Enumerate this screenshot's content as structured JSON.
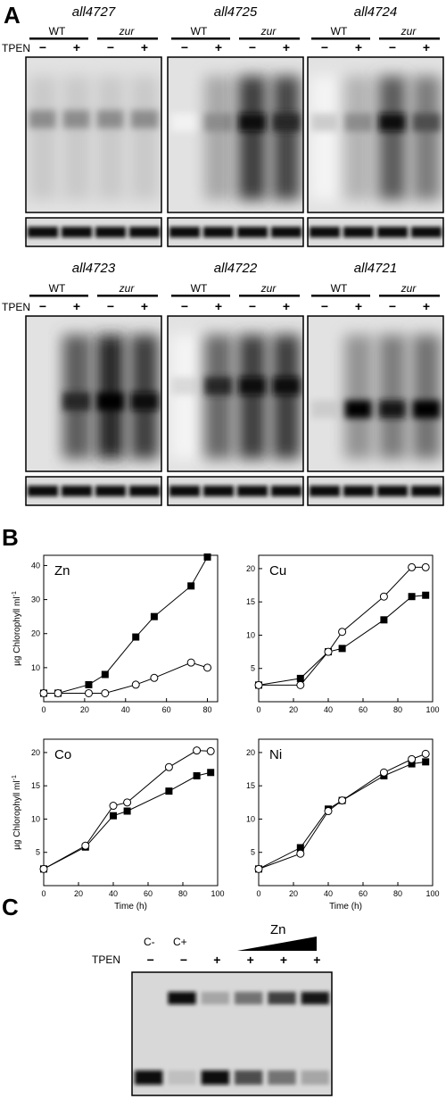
{
  "panel_a": {
    "letter": "A",
    "tpen_label": "TPEN",
    "wt_label": "WT",
    "zur_label": "zur",
    "minus": "−",
    "plus": "+",
    "blots": [
      {
        "gene": "all4727",
        "intensity": [
          0.45,
          0.45,
          0.45,
          0.45
        ],
        "smear": [
          0.25,
          0.25,
          0.25,
          0.25
        ],
        "band_y": 0.4
      },
      {
        "gene": "all4725",
        "intensity": [
          0.05,
          0.45,
          0.95,
          0.85
        ],
        "smear": [
          0.0,
          0.4,
          0.9,
          0.85
        ],
        "band_y": 0.42
      },
      {
        "gene": "all4724",
        "intensity": [
          0.2,
          0.45,
          0.95,
          0.7
        ],
        "smear": [
          0.05,
          0.35,
          0.75,
          0.6
        ],
        "band_y": 0.42
      },
      {
        "gene": "all4723",
        "intensity": [
          0.0,
          0.85,
          1.0,
          0.95
        ],
        "smear": [
          0.0,
          0.75,
          1.0,
          0.9
        ],
        "band_y": 0.55
      },
      {
        "gene": "all4722",
        "intensity": [
          0.15,
          0.85,
          0.95,
          0.95
        ],
        "smear": [
          0.05,
          0.7,
          0.9,
          0.9
        ],
        "band_y": 0.45
      },
      {
        "gene": "all4721",
        "intensity": [
          0.2,
          1.0,
          0.9,
          1.0
        ],
        "smear": [
          0.0,
          0.5,
          0.6,
          0.65
        ],
        "band_y": 0.6
      }
    ]
  },
  "panel_b": {
    "letter": "B",
    "ylabel": "µg Chlorophyll ml",
    "ylabel_sup": "-1",
    "xlabel": "Time (h)",
    "chart_data": [
      {
        "type": "line",
        "title": "Zn",
        "xlim": [
          0,
          85
        ],
        "ylim": [
          0,
          43
        ],
        "xticks": [
          0,
          20,
          40,
          60,
          80
        ],
        "yticks": [
          10,
          20,
          30,
          40
        ],
        "series": [
          {
            "marker": "filled-square",
            "x": [
              0,
              7,
              22,
              30,
              45,
              54,
              72,
              80
            ],
            "y": [
              2.5,
              2.5,
              5,
              8,
              19,
              25,
              34,
              42.5
            ]
          },
          {
            "marker": "open-circle",
            "x": [
              0,
              7,
              22,
              30,
              45,
              54,
              72,
              80
            ],
            "y": [
              2.5,
              2.5,
              2.5,
              2.5,
              5,
              7,
              11.5,
              10
            ]
          }
        ]
      },
      {
        "type": "line",
        "title": "Cu",
        "xlim": [
          0,
          100
        ],
        "ylim": [
          0,
          22
        ],
        "xticks": [
          0,
          20,
          40,
          60,
          80,
          100
        ],
        "yticks": [
          5,
          10,
          15,
          20
        ],
        "series": [
          {
            "marker": "filled-square",
            "x": [
              0,
              24,
              40,
              48,
              72,
              88,
              96
            ],
            "y": [
              2.5,
              3.5,
              7.5,
              8,
              12.3,
              15.8,
              16
            ]
          },
          {
            "marker": "open-circle",
            "x": [
              0,
              24,
              40,
              48,
              72,
              88,
              96
            ],
            "y": [
              2.5,
              2.5,
              7.5,
              10.5,
              15.8,
              20.2,
              20.2
            ]
          }
        ]
      },
      {
        "type": "line",
        "title": "Co",
        "xlim": [
          0,
          100
        ],
        "ylim": [
          0,
          22
        ],
        "xticks": [
          0,
          20,
          40,
          60,
          80,
          100
        ],
        "yticks": [
          5,
          10,
          15,
          20
        ],
        "series": [
          {
            "marker": "filled-square",
            "x": [
              0,
              24,
              40,
              48,
              72,
              88,
              96
            ],
            "y": [
              2.5,
              5.8,
              10.5,
              11.2,
              14.2,
              16.5,
              17
            ]
          },
          {
            "marker": "open-circle",
            "x": [
              0,
              24,
              40,
              48,
              72,
              88,
              96
            ],
            "y": [
              2.5,
              6,
              12,
              12.5,
              17.8,
              20.3,
              20.2
            ]
          }
        ]
      },
      {
        "type": "line",
        "title": "Ni",
        "xlim": [
          0,
          100
        ],
        "ylim": [
          0,
          22
        ],
        "xticks": [
          0,
          20,
          40,
          60,
          80,
          100
        ],
        "yticks": [
          5,
          10,
          15,
          20
        ],
        "series": [
          {
            "marker": "filled-square",
            "x": [
              0,
              24,
              40,
              48,
              72,
              88,
              96
            ],
            "y": [
              2.5,
              5.7,
              11.5,
              12.8,
              16.5,
              18.3,
              18.6
            ]
          },
          {
            "marker": "open-circle",
            "x": [
              0,
              24,
              40,
              48,
              72,
              88,
              96
            ],
            "y": [
              2.5,
              4.8,
              11.2,
              12.8,
              17,
              19,
              19.8
            ]
          }
        ]
      }
    ]
  },
  "panel_c": {
    "letter": "C",
    "tpen_label": "TPEN",
    "cminus": "C-",
    "cplus": "C+",
    "zn_label": "Zn",
    "lane_signs": [
      "−",
      "−",
      "+",
      "+",
      "+",
      "+"
    ],
    "shift_band": [
      0.0,
      0.95,
      0.35,
      0.55,
      0.75,
      0.9
    ],
    "free_band": [
      0.95,
      0.25,
      0.95,
      0.7,
      0.55,
      0.35
    ]
  }
}
